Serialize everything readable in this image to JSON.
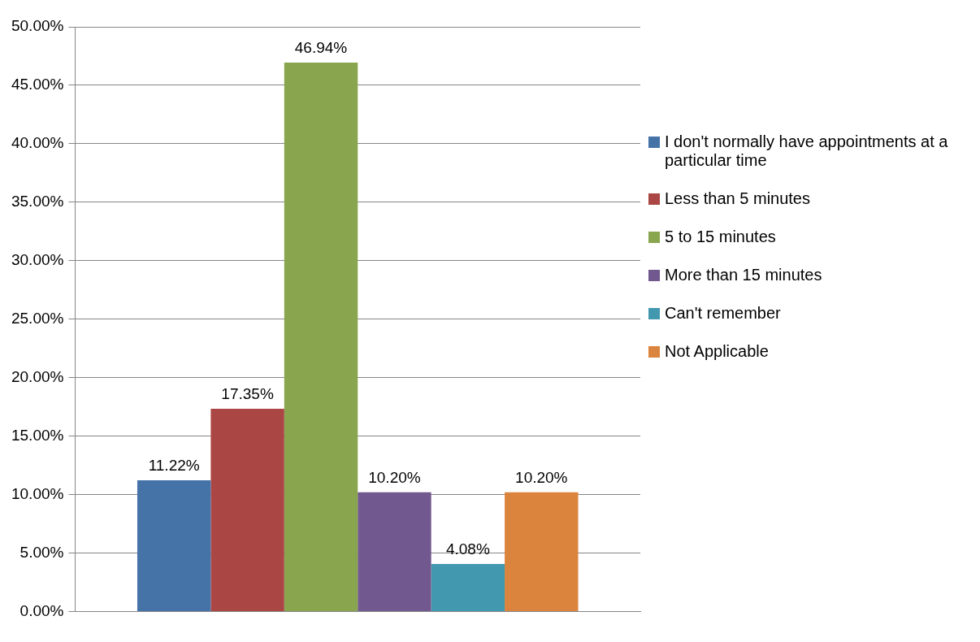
{
  "chart_data": {
    "type": "bar",
    "categories": [
      null
    ],
    "series": [
      {
        "name": "I don't normally have appointments at a particular time",
        "color": "#4572a7",
        "values": [
          11.22
        ],
        "value_labels": [
          "11.22%"
        ]
      },
      {
        "name": "Less than 5 minutes",
        "color": "#aa4643",
        "values": [
          17.35
        ],
        "value_labels": [
          "17.35%"
        ]
      },
      {
        "name": "5 to 15 minutes",
        "color": "#89a54e",
        "values": [
          46.94
        ],
        "value_labels": [
          "46.94%"
        ]
      },
      {
        "name": "More than 15 minutes",
        "color": "#71588f",
        "values": [
          10.2
        ],
        "value_labels": [
          "10.20%"
        ]
      },
      {
        "name": "Can't remember",
        "color": "#4198af",
        "values": [
          4.08
        ],
        "value_labels": [
          "4.08%"
        ]
      },
      {
        "name": "Not Applicable",
        "color": "#db843d",
        "values": [
          10.2
        ],
        "value_labels": [
          "10.20%"
        ]
      }
    ],
    "ylim": [
      0,
      50
    ],
    "yticks": [
      {
        "value": 0,
        "label": "0.00%"
      },
      {
        "value": 5,
        "label": "5.00%"
      },
      {
        "value": 10,
        "label": "10.00%"
      },
      {
        "value": 15,
        "label": "15.00%"
      },
      {
        "value": 20,
        "label": "20.00%"
      },
      {
        "value": 25,
        "label": "25.00%"
      },
      {
        "value": 30,
        "label": "30.00%"
      },
      {
        "value": 35,
        "label": "35.00%"
      },
      {
        "value": 40,
        "label": "40.00%"
      },
      {
        "value": 45,
        "label": "45.00%"
      },
      {
        "value": 50,
        "label": "50.00%"
      }
    ],
    "grid": "y",
    "legend": "right"
  }
}
